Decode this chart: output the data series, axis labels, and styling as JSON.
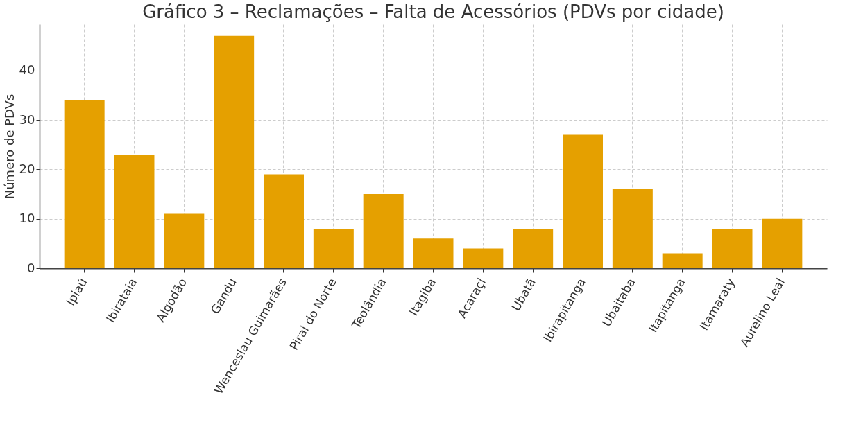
{
  "chart_data": {
    "type": "bar",
    "title": "Gráfico 3 – Reclamações – Falta de Acessórios (PDVs por cidade)",
    "ylabel": "Número de PDVs",
    "categories": [
      "Ipiaú",
      "Ibirataia",
      "Algodão",
      "Gandu",
      "Wenceslau Guimarães",
      "Pirai do Norte",
      "Teolândia",
      "Itagiba",
      "Acaraçi",
      "Ubatã",
      "Ibirapitanga",
      "Ubaitaba",
      "Itapitanga",
      "Itamaraty",
      "Aurelino Leal"
    ],
    "values": [
      34,
      23,
      11,
      47,
      19,
      8,
      15,
      6,
      4,
      8,
      27,
      16,
      3,
      8,
      10
    ],
    "color": "#e5a000",
    "ylim": [
      0,
      49.35
    ],
    "yticks": [
      0,
      10,
      20,
      30,
      40
    ],
    "grid": true
  }
}
